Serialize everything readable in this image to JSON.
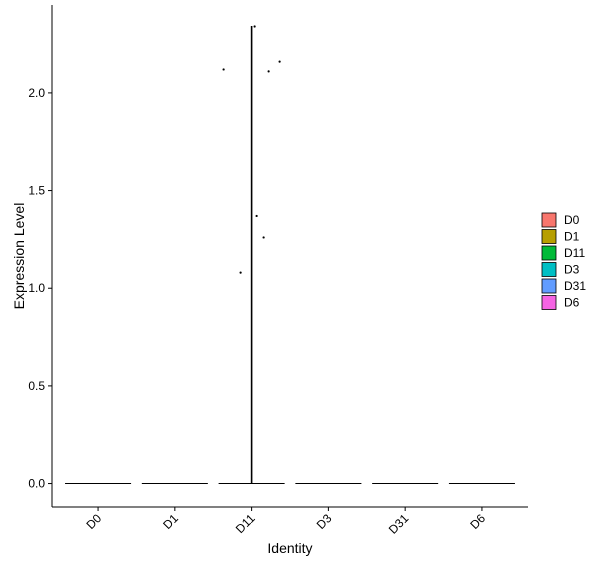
{
  "chart_data": {
    "type": "violin",
    "x_label": "Identity",
    "y_label": "Expression Level",
    "categories": [
      "D0",
      "D1",
      "D11",
      "D3",
      "D31",
      "D6"
    ],
    "colors": [
      "#F8766D",
      "#B79F00",
      "#00BA38",
      "#00BFC4",
      "#619CFF",
      "#F564E3"
    ],
    "values": [
      0,
      0,
      2.34,
      0,
      0,
      0
    ],
    "points": [
      {
        "category": "D11",
        "value": 2.34
      },
      {
        "category": "D11",
        "value": 2.12
      },
      {
        "category": "D11",
        "value": 2.11
      },
      {
        "category": "D11",
        "value": 2.16
      },
      {
        "category": "D11",
        "value": 1.37
      },
      {
        "category": "D11",
        "value": 1.26
      },
      {
        "category": "D11",
        "value": 1.08
      }
    ],
    "ylim": [
      -0.12,
      2.45
    ],
    "yticks": [
      {
        "value": 0,
        "label": "0.0"
      },
      0.5,
      {
        "value": 1,
        "label": "1.0"
      },
      1.5,
      {
        "value": 2,
        "label": "2.0"
      }
    ],
    "legend": "right"
  }
}
